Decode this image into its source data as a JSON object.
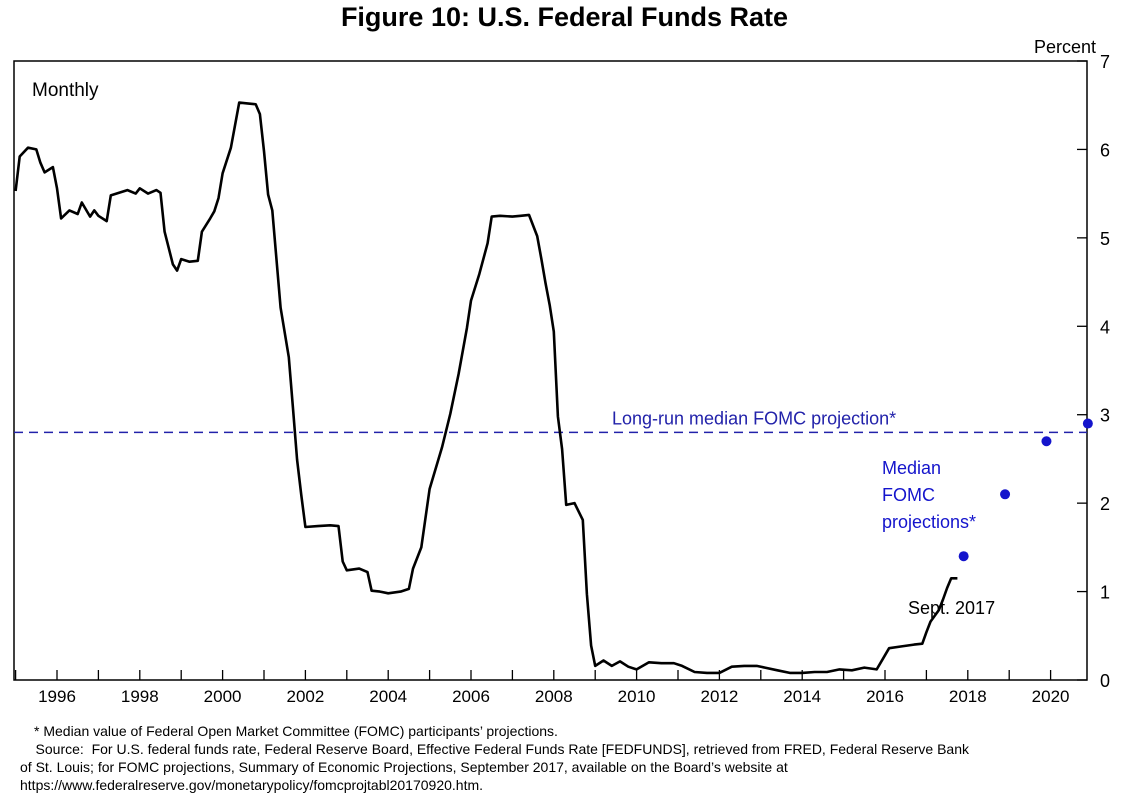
{
  "chart_data": {
    "type": "line",
    "title": "Figure 10:  U.S. Federal Funds Rate",
    "frequency_label": "Monthly",
    "ylabel": "Percent",
    "ylim": [
      0,
      7
    ],
    "yticks": [
      "0",
      "1",
      "2",
      "3",
      "4",
      "5",
      "6",
      "7"
    ],
    "xlim": [
      1995.0,
      2021.6
    ],
    "xticks": [
      "1996",
      "1998",
      "2000",
      "2002",
      "2004",
      "2006",
      "2008",
      "2010",
      "2012",
      "2014",
      "2016",
      "2018",
      "2020"
    ],
    "series": [
      {
        "name": "Effective Federal Funds Rate",
        "color": "#000000",
        "points": [
          [
            1995.0,
            5.53
          ],
          [
            1995.1,
            5.92
          ],
          [
            1995.3,
            6.02
          ],
          [
            1995.5,
            6.0
          ],
          [
            1995.6,
            5.85
          ],
          [
            1995.7,
            5.74
          ],
          [
            1995.9,
            5.8
          ],
          [
            1996.0,
            5.56
          ],
          [
            1996.1,
            5.22
          ],
          [
            1996.3,
            5.31
          ],
          [
            1996.5,
            5.27
          ],
          [
            1996.6,
            5.4
          ],
          [
            1996.8,
            5.24
          ],
          [
            1996.9,
            5.31
          ],
          [
            1997.0,
            5.25
          ],
          [
            1997.2,
            5.19
          ],
          [
            1997.3,
            5.48
          ],
          [
            1997.5,
            5.51
          ],
          [
            1997.7,
            5.54
          ],
          [
            1997.9,
            5.5
          ],
          [
            1998.0,
            5.56
          ],
          [
            1998.2,
            5.5
          ],
          [
            1998.4,
            5.54
          ],
          [
            1998.5,
            5.51
          ],
          [
            1998.6,
            5.07
          ],
          [
            1998.8,
            4.7
          ],
          [
            1998.9,
            4.63
          ],
          [
            1999.0,
            4.76
          ],
          [
            1999.2,
            4.73
          ],
          [
            1999.4,
            4.74
          ],
          [
            1999.5,
            5.07
          ],
          [
            1999.7,
            5.22
          ],
          [
            1999.8,
            5.3
          ],
          [
            1999.9,
            5.45
          ],
          [
            2000.0,
            5.73
          ],
          [
            2000.2,
            6.02
          ],
          [
            2000.4,
            6.53
          ],
          [
            2000.6,
            6.52
          ],
          [
            2000.8,
            6.51
          ],
          [
            2000.9,
            6.4
          ],
          [
            2001.0,
            5.98
          ],
          [
            2001.1,
            5.49
          ],
          [
            2001.2,
            5.31
          ],
          [
            2001.4,
            4.21
          ],
          [
            2001.6,
            3.65
          ],
          [
            2001.7,
            3.07
          ],
          [
            2001.8,
            2.49
          ],
          [
            2001.9,
            2.09
          ],
          [
            2002.0,
            1.73
          ],
          [
            2002.3,
            1.74
          ],
          [
            2002.6,
            1.75
          ],
          [
            2002.8,
            1.74
          ],
          [
            2002.9,
            1.34
          ],
          [
            2003.0,
            1.24
          ],
          [
            2003.3,
            1.26
          ],
          [
            2003.5,
            1.22
          ],
          [
            2003.6,
            1.01
          ],
          [
            2003.8,
            1.0
          ],
          [
            2004.0,
            0.98
          ],
          [
            2004.3,
            1.0
          ],
          [
            2004.5,
            1.03
          ],
          [
            2004.6,
            1.26
          ],
          [
            2004.8,
            1.5
          ],
          [
            2005.0,
            2.16
          ],
          [
            2005.3,
            2.63
          ],
          [
            2005.5,
            3.01
          ],
          [
            2005.7,
            3.46
          ],
          [
            2005.9,
            3.98
          ],
          [
            2006.0,
            4.29
          ],
          [
            2006.2,
            4.59
          ],
          [
            2006.4,
            4.94
          ],
          [
            2006.5,
            5.24
          ],
          [
            2006.7,
            5.25
          ],
          [
            2007.0,
            5.24
          ],
          [
            2007.2,
            5.25
          ],
          [
            2007.4,
            5.26
          ],
          [
            2007.6,
            5.02
          ],
          [
            2007.7,
            4.76
          ],
          [
            2007.8,
            4.49
          ],
          [
            2007.9,
            4.24
          ],
          [
            2008.0,
            3.94
          ],
          [
            2008.1,
            2.98
          ],
          [
            2008.2,
            2.61
          ],
          [
            2008.3,
            1.98
          ],
          [
            2008.5,
            2.0
          ],
          [
            2008.7,
            1.81
          ],
          [
            2008.8,
            0.97
          ],
          [
            2008.9,
            0.39
          ],
          [
            2009.0,
            0.16
          ],
          [
            2009.2,
            0.22
          ],
          [
            2009.4,
            0.16
          ],
          [
            2009.6,
            0.21
          ],
          [
            2009.8,
            0.15
          ],
          [
            2010.0,
            0.12
          ],
          [
            2010.3,
            0.2
          ],
          [
            2010.6,
            0.19
          ],
          [
            2010.9,
            0.19
          ],
          [
            2011.1,
            0.16
          ],
          [
            2011.4,
            0.09
          ],
          [
            2011.7,
            0.08
          ],
          [
            2012.0,
            0.08
          ],
          [
            2012.3,
            0.15
          ],
          [
            2012.6,
            0.16
          ],
          [
            2012.9,
            0.16
          ],
          [
            2013.1,
            0.14
          ],
          [
            2013.4,
            0.11
          ],
          [
            2013.7,
            0.08
          ],
          [
            2014.0,
            0.08
          ],
          [
            2014.3,
            0.09
          ],
          [
            2014.6,
            0.09
          ],
          [
            2014.9,
            0.12
          ],
          [
            2015.2,
            0.11
          ],
          [
            2015.5,
            0.14
          ],
          [
            2015.8,
            0.12
          ],
          [
            2015.95,
            0.24
          ],
          [
            2016.1,
            0.36
          ],
          [
            2016.4,
            0.38
          ],
          [
            2016.7,
            0.4
          ],
          [
            2016.9,
            0.41
          ],
          [
            2017.0,
            0.54
          ],
          [
            2017.1,
            0.66
          ],
          [
            2017.3,
            0.79
          ],
          [
            2017.4,
            0.91
          ],
          [
            2017.5,
            1.04
          ],
          [
            2017.6,
            1.15
          ],
          [
            2017.75,
            1.15
          ]
        ]
      }
    ],
    "reference_line": {
      "label": "Long-run median FOMC projection*",
      "value": 2.8,
      "color": "#2222aa",
      "style": "dashed"
    },
    "projections": {
      "label": [
        "Median",
        "FOMC",
        "projections*"
      ],
      "color": "#1414cc",
      "points": [
        [
          2017.9,
          1.4
        ],
        [
          2018.9,
          2.1
        ],
        [
          2019.9,
          2.7
        ],
        [
          2020.9,
          2.9
        ]
      ]
    },
    "annotations": [
      {
        "text": "Sept. 2017",
        "x": 2017.6,
        "y": 0.85
      }
    ]
  },
  "footnotes": {
    "note": "* Median value of Federal Open Market Committee (FOMC) participants’ projections.",
    "source_lines": [
      "    Source:  For U.S. federal funds rate, Federal Reserve Board, Effective Federal Funds Rate [FEDFUNDS], retrieved from FRED, Federal Reserve Bank",
      "of St. Louis; for FOMC projections, Summary of Economic Projections, September 2017, available on the Board’s website at",
      "https://www.federalreserve.gov/monetarypolicy/fomcprojtabl20170920.htm."
    ]
  }
}
